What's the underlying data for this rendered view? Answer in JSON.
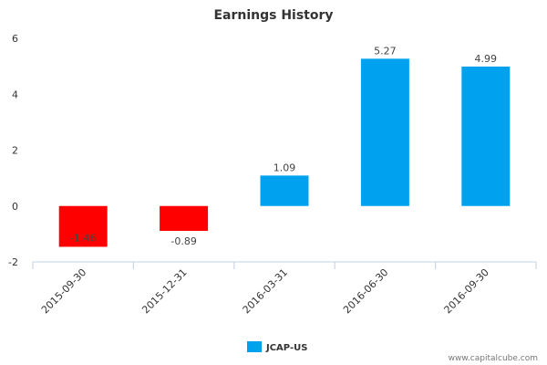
{
  "chart_data": {
    "type": "bar",
    "title": "Earnings History",
    "xlabel": "",
    "ylabel": "",
    "categories": [
      "2015-09-30",
      "2015-12-31",
      "2016-03-31",
      "2016-06-30",
      "2016-09-30"
    ],
    "series": [
      {
        "name": "JCAP-US",
        "values": [
          -1.46,
          -0.89,
          1.09,
          5.27,
          4.99
        ]
      }
    ],
    "data_labels": [
      "-1.46",
      "-0.89",
      "1.09",
      "5.27",
      "4.99"
    ],
    "ylim": [
      -2,
      6
    ],
    "yticks": [
      -2,
      0,
      2,
      4,
      6
    ],
    "grid": false,
    "legend_position": "bottom-center",
    "colors": {
      "positive": "#00a2f0",
      "negative": "#ff0000",
      "axis": "#c0d0e0"
    }
  },
  "credit": "www.capitalcube.com"
}
